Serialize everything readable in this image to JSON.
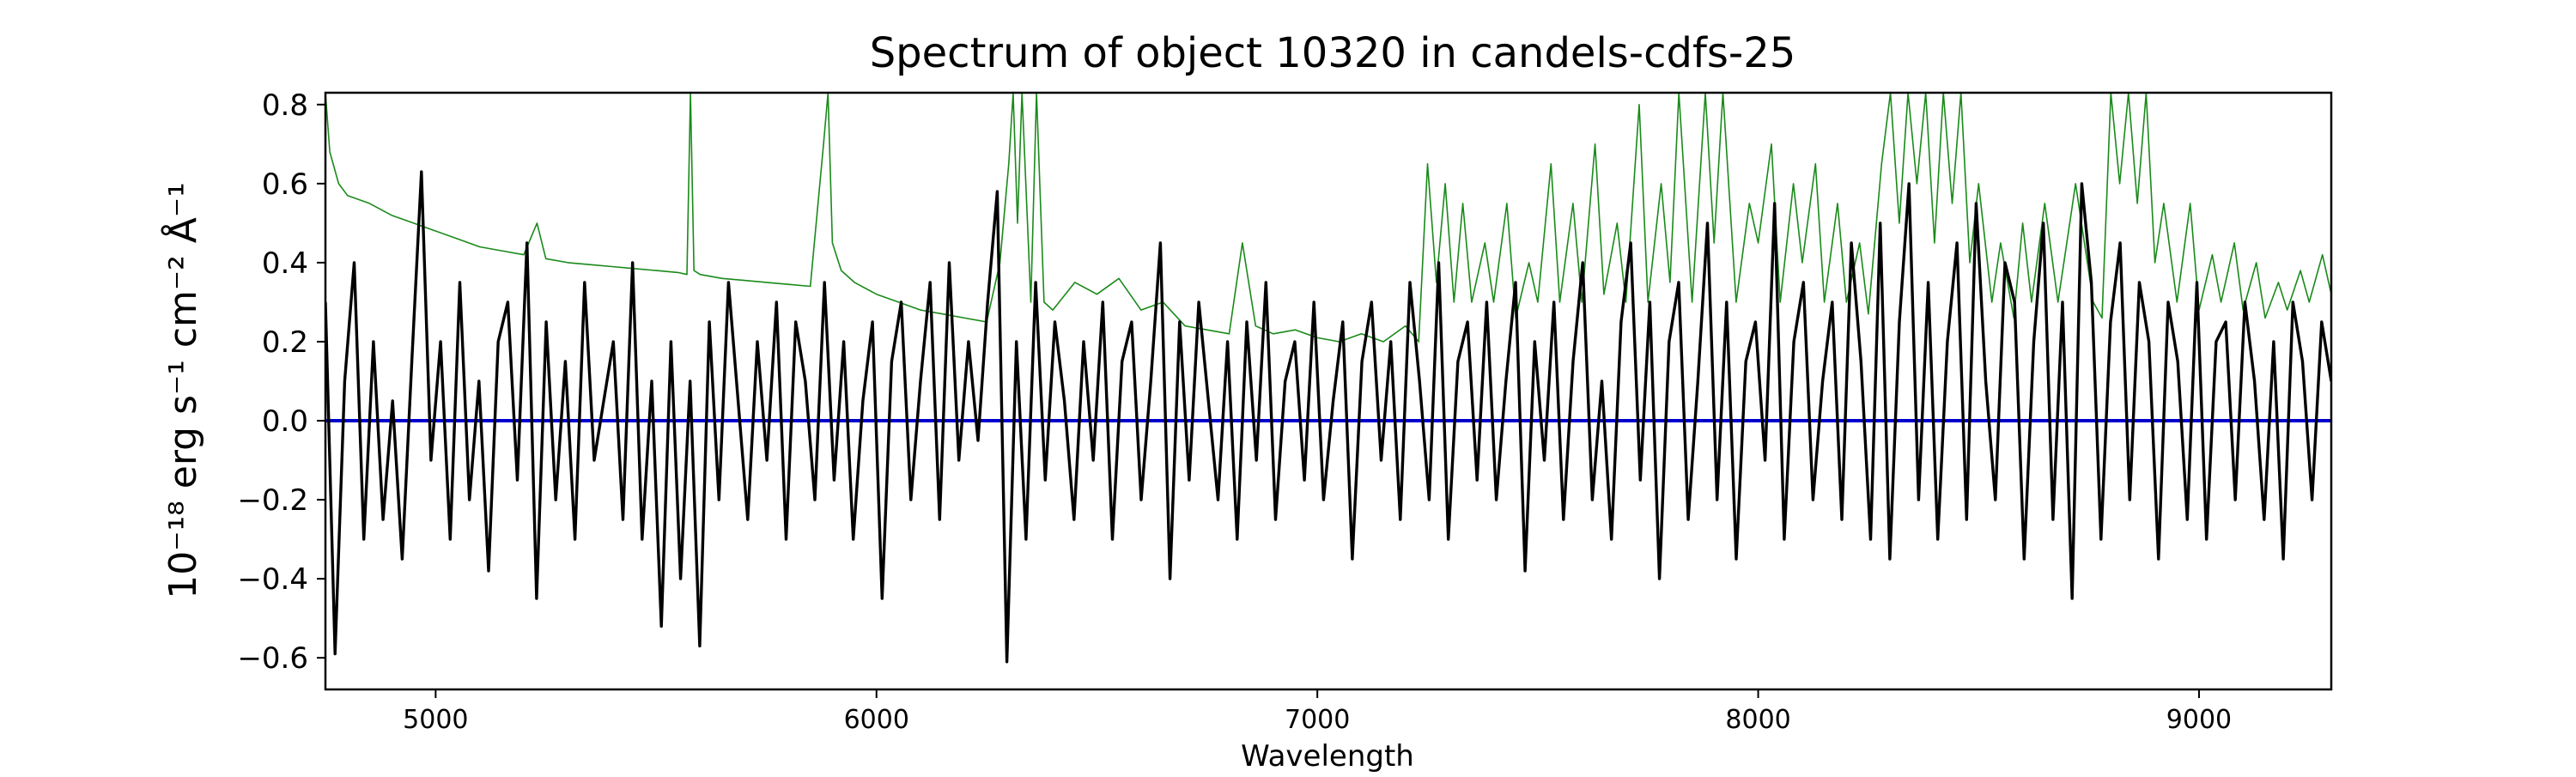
{
  "chart_data": {
    "type": "line",
    "title": "Spectrum of object 10320 in candels-cdfs-25",
    "xlabel": "Wavelength",
    "ylabel": "10⁻¹⁸ erg s⁻¹ cm⁻² Å⁻¹",
    "xlim": [
      4750,
      9300
    ],
    "ylim": [
      -0.68,
      0.83
    ],
    "x_ticks": [
      5000,
      6000,
      7000,
      8000,
      9000
    ],
    "y_ticks": [
      -0.6,
      -0.4,
      -0.2,
      0.0,
      0.2,
      0.4,
      0.6,
      0.8
    ],
    "y_tick_labels": [
      "−0.6",
      "−0.4",
      "−0.2",
      "0.0",
      "0.2",
      "0.4",
      "0.6",
      "0.8"
    ],
    "grid": false,
    "series": [
      {
        "color": "#1a8a1a",
        "description": "error / sky spectrum (green)",
        "x": [
          4750,
          4760,
          4780,
          4800,
          4850,
          4900,
          4950,
          5000,
          5050,
          5100,
          5150,
          5200,
          5230,
          5250,
          5300,
          5350,
          5400,
          5450,
          5500,
          5550,
          5570,
          5578,
          5586,
          5600,
          5650,
          5700,
          5750,
          5800,
          5850,
          5880,
          5890,
          5900,
          5920,
          5950,
          6000,
          6050,
          6100,
          6150,
          6200,
          6250,
          6280,
          6300,
          6310,
          6320,
          6330,
          6350,
          6363,
          6380,
          6400,
          6450,
          6500,
          6550,
          6600,
          6650,
          6700,
          6750,
          6800,
          6830,
          6840,
          6860,
          6900,
          6950,
          7000,
          7050,
          7100,
          7150,
          7200,
          7230,
          7250,
          7270,
          7290,
          7310,
          7330,
          7350,
          7380,
          7400,
          7430,
          7450,
          7480,
          7500,
          7530,
          7550,
          7580,
          7600,
          7630,
          7650,
          7680,
          7700,
          7730,
          7750,
          7780,
          7800,
          7820,
          7850,
          7880,
          7900,
          7920,
          7950,
          7980,
          8000,
          8030,
          8050,
          8080,
          8100,
          8130,
          8150,
          8180,
          8200,
          8230,
          8250,
          8280,
          8300,
          8320,
          8340,
          8360,
          8380,
          8400,
          8420,
          8440,
          8460,
          8480,
          8500,
          8530,
          8550,
          8580,
          8600,
          8620,
          8650,
          8680,
          8700,
          8720,
          8740,
          8760,
          8780,
          8800,
          8820,
          8840,
          8860,
          8880,
          8900,
          8920,
          8950,
          8980,
          9000,
          9030,
          9050,
          9080,
          9100,
          9130,
          9150,
          9180,
          9200,
          9230,
          9250,
          9280,
          9300
        ],
        "y": [
          0.83,
          0.68,
          0.6,
          0.57,
          0.55,
          0.52,
          0.5,
          0.48,
          0.46,
          0.44,
          0.43,
          0.42,
          0.5,
          0.41,
          0.4,
          0.395,
          0.39,
          0.385,
          0.38,
          0.375,
          0.37,
          0.83,
          0.38,
          0.37,
          0.36,
          0.355,
          0.35,
          0.345,
          0.34,
          0.7,
          0.83,
          0.45,
          0.38,
          0.35,
          0.32,
          0.3,
          0.28,
          0.27,
          0.26,
          0.25,
          0.4,
          0.65,
          0.83,
          0.5,
          0.83,
          0.3,
          0.83,
          0.3,
          0.28,
          0.35,
          0.32,
          0.36,
          0.28,
          0.3,
          0.24,
          0.23,
          0.22,
          0.45,
          0.38,
          0.24,
          0.22,
          0.23,
          0.21,
          0.2,
          0.22,
          0.2,
          0.24,
          0.2,
          0.65,
          0.35,
          0.6,
          0.3,
          0.55,
          0.3,
          0.45,
          0.3,
          0.55,
          0.26,
          0.4,
          0.3,
          0.65,
          0.3,
          0.55,
          0.3,
          0.7,
          0.32,
          0.5,
          0.3,
          0.8,
          0.3,
          0.6,
          0.35,
          0.83,
          0.3,
          0.83,
          0.45,
          0.83,
          0.3,
          0.55,
          0.45,
          0.7,
          0.3,
          0.6,
          0.4,
          0.65,
          0.3,
          0.55,
          0.3,
          0.45,
          0.27,
          0.65,
          0.83,
          0.5,
          0.83,
          0.6,
          0.83,
          0.45,
          0.83,
          0.55,
          0.83,
          0.4,
          0.6,
          0.3,
          0.45,
          0.26,
          0.5,
          0.3,
          0.55,
          0.3,
          0.45,
          0.6,
          0.45,
          0.3,
          0.26,
          0.83,
          0.6,
          0.83,
          0.55,
          0.83,
          0.4,
          0.55,
          0.3,
          0.55,
          0.28,
          0.42,
          0.3,
          0.45,
          0.28,
          0.4,
          0.26,
          0.35,
          0.28,
          0.38,
          0.3,
          0.42,
          0.32
        ]
      },
      {
        "color": "#0000cc",
        "description": "zero / model line (blue)",
        "x": [
          4750,
          9300
        ],
        "y": [
          0.0,
          0.0
        ]
      },
      {
        "color": "#000000",
        "description": "object flux spectrum (black)",
        "x_start": 4750,
        "x_end": 9300,
        "y": [
          0.3,
          -0.59,
          0.1,
          0.4,
          -0.3,
          0.2,
          -0.25,
          0.05,
          -0.35,
          0.15,
          0.63,
          -0.1,
          0.2,
          -0.3,
          0.35,
          -0.2,
          0.1,
          -0.38,
          0.2,
          0.3,
          -0.15,
          0.45,
          -0.45,
          0.25,
          -0.2,
          0.15,
          -0.3,
          0.35,
          -0.1,
          0.05,
          0.2,
          -0.25,
          0.4,
          -0.3,
          0.1,
          -0.52,
          0.2,
          -0.4,
          0.1,
          -0.57,
          0.25,
          -0.2,
          0.35,
          0.05,
          -0.25,
          0.2,
          -0.1,
          0.3,
          -0.3,
          0.25,
          0.1,
          -0.2,
          0.35,
          -0.15,
          0.2,
          -0.3,
          0.05,
          0.25,
          -0.45,
          0.15,
          0.3,
          -0.2,
          0.1,
          0.35,
          -0.25,
          0.4,
          -0.1,
          0.2,
          -0.05,
          0.3,
          0.58,
          -0.61,
          0.2,
          -0.3,
          0.35,
          -0.15,
          0.25,
          0.05,
          -0.25,
          0.2,
          -0.1,
          0.3,
          -0.3,
          0.15,
          0.25,
          -0.2,
          0.1,
          0.45,
          -0.4,
          0.25,
          -0.15,
          0.3,
          0.05,
          -0.2,
          0.2,
          -0.3,
          0.25,
          -0.1,
          0.35,
          -0.25,
          0.1,
          0.2,
          -0.15,
          0.3,
          -0.2,
          0.05,
          0.25,
          -0.35,
          0.15,
          0.3,
          -0.1,
          0.2,
          -0.25,
          0.35,
          0.1,
          -0.2,
          0.4,
          -0.3,
          0.15,
          0.25,
          -0.15,
          0.3,
          -0.2,
          0.1,
          0.35,
          -0.38,
          0.2,
          -0.1,
          0.3,
          -0.25,
          0.15,
          0.4,
          -0.2,
          0.1,
          -0.3,
          0.25,
          0.45,
          -0.15,
          0.3,
          -0.4,
          0.2,
          0.35,
          -0.25,
          0.1,
          0.5,
          -0.2,
          0.3,
          -0.35,
          0.15,
          0.25,
          -0.1,
          0.55,
          -0.3,
          0.2,
          0.35,
          -0.2,
          0.1,
          0.3,
          -0.25,
          0.45,
          0.15,
          -0.3,
          0.5,
          -0.35,
          0.25,
          0.6,
          -0.2,
          0.35,
          -0.3,
          0.2,
          0.45,
          -0.25,
          0.55,
          0.1,
          -0.2,
          0.4,
          0.3,
          -0.35,
          0.2,
          0.5,
          -0.25,
          0.3,
          -0.45,
          0.6,
          0.35,
          -0.3,
          0.25,
          0.45,
          -0.2,
          0.35,
          0.2,
          -0.35,
          0.3,
          0.15,
          -0.25,
          0.35,
          -0.3,
          0.2,
          0.25,
          -0.2,
          0.3,
          0.1,
          -0.25,
          0.2,
          -0.35,
          0.3,
          0.15,
          -0.2,
          0.25,
          0.1
        ]
      }
    ]
  }
}
